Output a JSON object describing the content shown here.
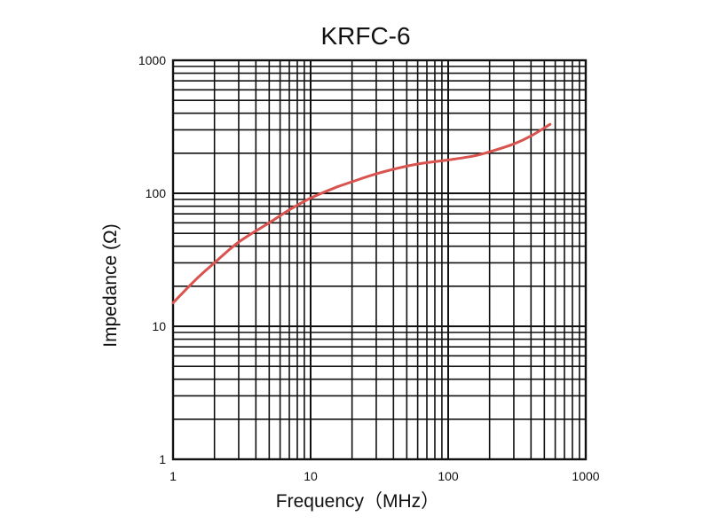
{
  "chart_data": {
    "type": "line",
    "title": "KRFC-6",
    "xlabel": "Frequency（MHz）",
    "ylabel": "Impedance (Ω)",
    "xscale": "log",
    "yscale": "log",
    "xlim": [
      1,
      1000
    ],
    "ylim": [
      1,
      1000
    ],
    "grid": true,
    "x_ticks": [
      "1",
      "10",
      "100",
      "1000"
    ],
    "y_ticks": [
      "1",
      "10",
      "100",
      "1000"
    ],
    "colors": {
      "series": "#d9534f",
      "grid": "#111111"
    },
    "series": [
      {
        "points": [
          [
            1,
            15
          ],
          [
            1.5,
            23
          ],
          [
            2,
            30
          ],
          [
            3,
            43
          ],
          [
            5,
            60
          ],
          [
            7,
            75
          ],
          [
            10,
            92
          ],
          [
            15,
            110
          ],
          [
            20,
            122
          ],
          [
            30,
            140
          ],
          [
            50,
            160
          ],
          [
            70,
            170
          ],
          [
            100,
            178
          ],
          [
            150,
            190
          ],
          [
            200,
            205
          ],
          [
            300,
            235
          ],
          [
            400,
            270
          ],
          [
            550,
            330
          ]
        ]
      }
    ]
  }
}
